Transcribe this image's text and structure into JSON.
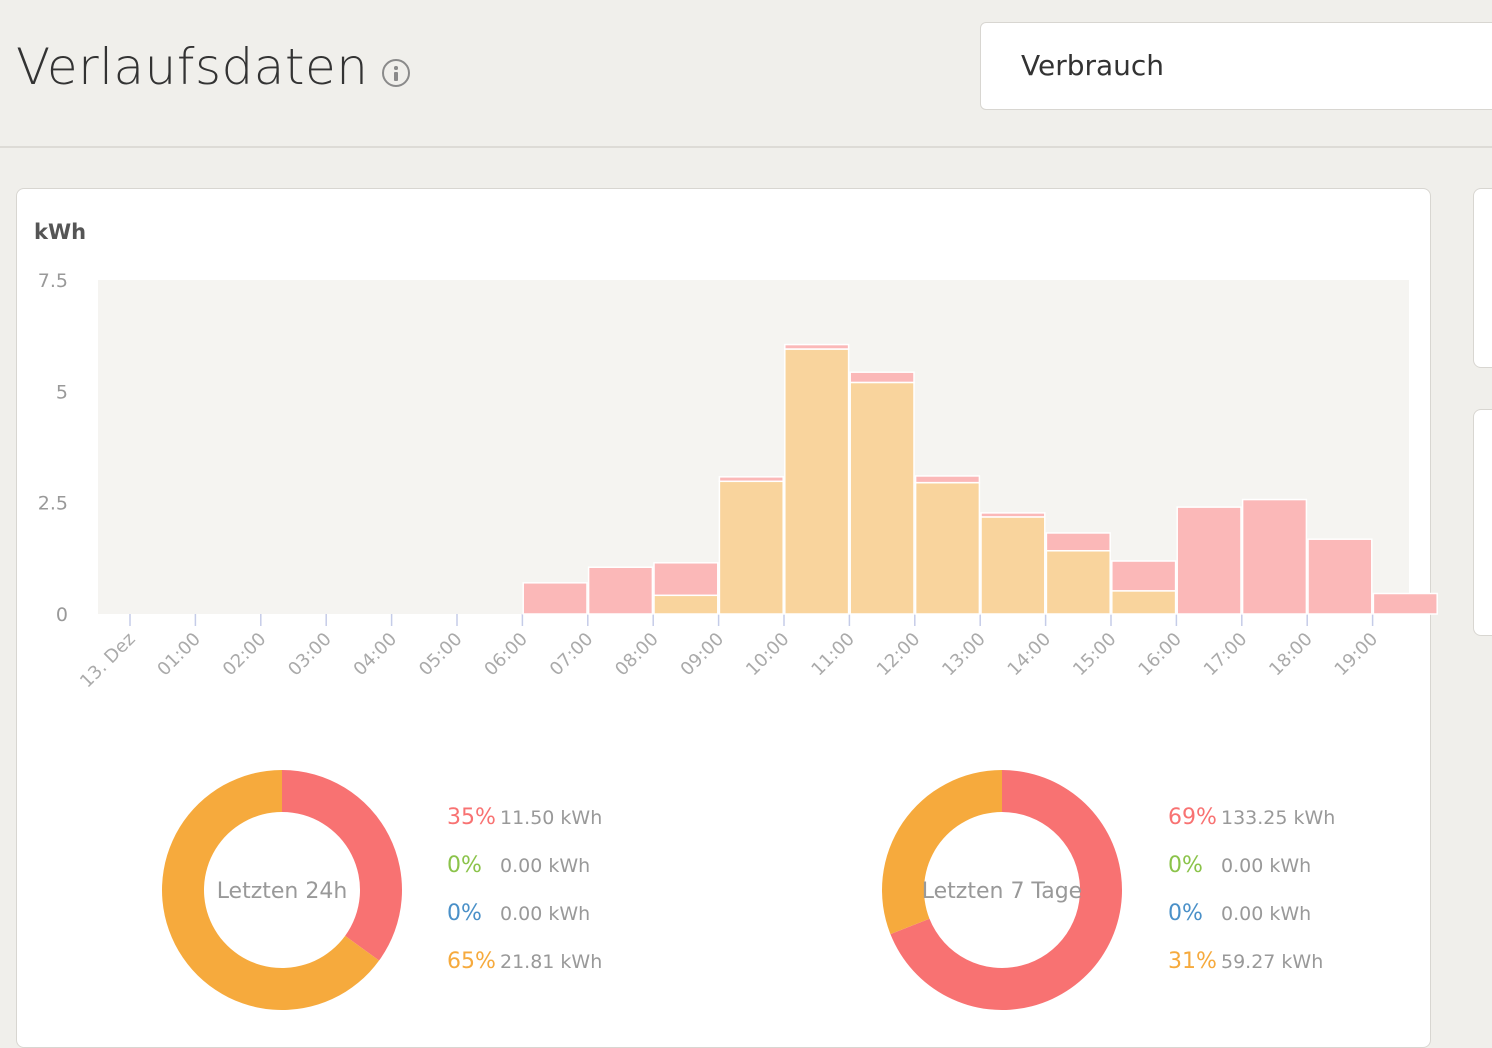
{
  "header": {
    "title": "Verlaufsdaten",
    "select_value": "Verbrauch"
  },
  "chart_data": {
    "type": "bar",
    "stacked": true,
    "ylabel": "kWh",
    "ylim": [
      0,
      7.5
    ],
    "yticks": [
      "0",
      "2.5",
      "5",
      "7.5"
    ],
    "categories": [
      "13. Dez",
      "01:00",
      "02:00",
      "03:00",
      "04:00",
      "05:00",
      "06:00",
      "07:00",
      "08:00",
      "09:00",
      "10:00",
      "11:00",
      "12:00",
      "13:00",
      "14:00",
      "15:00",
      "16:00",
      "17:00",
      "18:00",
      "19:00"
    ],
    "series": [
      {
        "color": "#f9d49d",
        "values": [
          0,
          0,
          0,
          0,
          0,
          0,
          0,
          0,
          0.42,
          2.98,
          5.95,
          5.2,
          2.95,
          2.18,
          1.42,
          0.52,
          0,
          0,
          0,
          0
        ]
      },
      {
        "color": "#fbb8b8",
        "values": [
          0,
          0,
          0,
          0,
          0,
          0,
          0.7,
          1.05,
          0.73,
          0.1,
          0.1,
          0.23,
          0.15,
          0.09,
          0.4,
          0.67,
          2.4,
          2.57,
          1.68,
          0.46
        ]
      }
    ],
    "grid": false
  },
  "donuts": [
    {
      "label": "Letzten 24h",
      "rows": [
        {
          "pct": "35%",
          "val": "11.50 kWh",
          "color": "#f87272"
        },
        {
          "pct": "0%",
          "val": "0.00 kWh",
          "color": "#8bc34a"
        },
        {
          "pct": "0%",
          "val": "0.00 kWh",
          "color": "#4a90c8"
        },
        {
          "pct": "65%",
          "val": "21.81 kWh",
          "color": "#f6aa3d"
        }
      ],
      "slices": [
        {
          "value": 35,
          "color": "#f87272"
        },
        {
          "value": 65,
          "color": "#f6aa3d"
        }
      ]
    },
    {
      "label": "Letzten 7 Tage",
      "rows": [
        {
          "pct": "69%",
          "val": "133.25 kWh",
          "color": "#f87272"
        },
        {
          "pct": "0%",
          "val": "0.00 kWh",
          "color": "#8bc34a"
        },
        {
          "pct": "0%",
          "val": "0.00 kWh",
          "color": "#4a90c8"
        },
        {
          "pct": "31%",
          "val": "59.27 kWh",
          "color": "#f6aa3d"
        }
      ],
      "slices": [
        {
          "value": 69,
          "color": "#f87272"
        },
        {
          "value": 31,
          "color": "#f6aa3d"
        }
      ]
    }
  ]
}
